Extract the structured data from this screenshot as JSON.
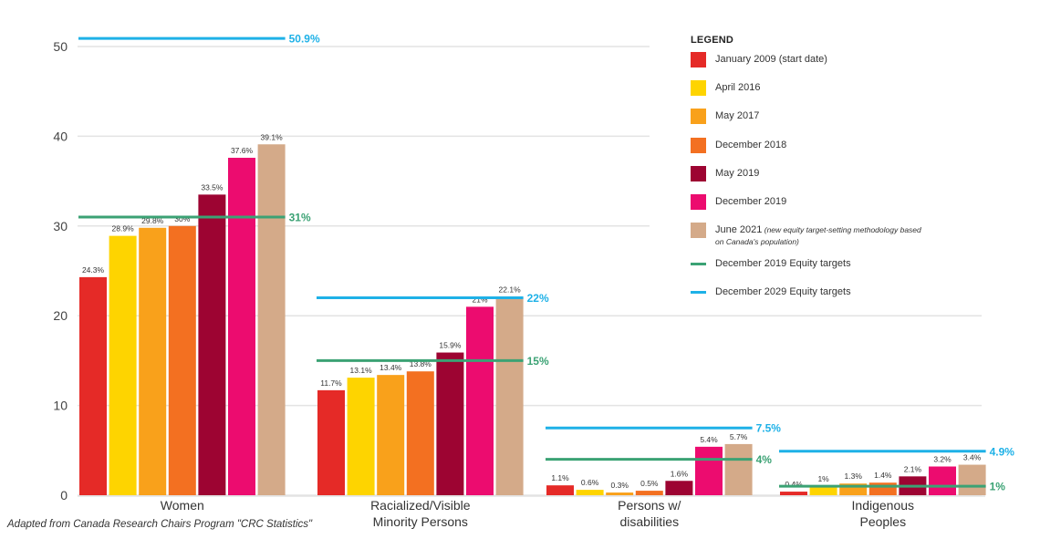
{
  "chart_data": {
    "type": "bar",
    "title": "",
    "xlabel": "",
    "ylabel": "",
    "ylim": [
      0,
      50
    ],
    "yticks": [
      0,
      10,
      20,
      30,
      40,
      50
    ],
    "grid": true,
    "legend_position": "top-right",
    "categories": [
      [
        "Women"
      ],
      [
        "Racialized/Visible",
        "Minority Persons"
      ],
      [
        "Persons w/",
        "disabilities"
      ],
      [
        "Indigenous",
        "Peoples"
      ]
    ],
    "series": [
      {
        "name": "January 2009 (start date)",
        "color": "#e52a27",
        "values": [
          24.3,
          11.7,
          1.1,
          0.4
        ],
        "labels": [
          "24.3%",
          "11.7%",
          "1.1%",
          "0.4%"
        ]
      },
      {
        "name": "April 2016",
        "color": "#fed400",
        "values": [
          28.9,
          13.1,
          0.6,
          1
        ],
        "labels": [
          "28.9%",
          "13.1%",
          "0.6%",
          "1%"
        ]
      },
      {
        "name": "May 2017",
        "color": "#f9a11b",
        "values": [
          29.8,
          13.4,
          0.3,
          1.3
        ],
        "labels": [
          "29.8%",
          "13.4%",
          "0.3%",
          "1.3%"
        ]
      },
      {
        "name": "December 2018",
        "color": "#f37021",
        "values": [
          30,
          13.8,
          0.5,
          1.4
        ],
        "labels": [
          "30%",
          "13.8%",
          "0.5%",
          "1.4%"
        ]
      },
      {
        "name": "May 2019",
        "color": "#9d0432",
        "values": [
          33.5,
          15.9,
          1.6,
          2.1
        ],
        "labels": [
          "33.5%",
          "15.9%",
          "1.6%",
          "2.1%"
        ]
      },
      {
        "name": "December 2019",
        "color": "#ec0c6f",
        "values": [
          37.6,
          21,
          5.4,
          3.2
        ],
        "labels": [
          "37.6%",
          "21%",
          "5.4%",
          "3.2%"
        ]
      },
      {
        "name": "June 2021",
        "note": "(new equity target-setting methodology based on Canada's population)",
        "color": "#d4aa89",
        "values": [
          39.1,
          22.1,
          5.7,
          3.4
        ],
        "labels": [
          "39.1%",
          "22.1%",
          "5.7%",
          "3.4%"
        ]
      }
    ],
    "target_lines": [
      {
        "name": "December 2019 Equity targets",
        "color": "#3ba274",
        "values": [
          31,
          15,
          4,
          1
        ],
        "labels": [
          "31%",
          "15%",
          "4%",
          "1%"
        ]
      },
      {
        "name": "December 2029 Equity targets",
        "color": "#1eb1e7",
        "values": [
          50.9,
          22,
          7.5,
          4.9
        ],
        "labels": [
          "50.9%",
          "22%",
          "7.5%",
          "4.9%"
        ]
      }
    ]
  },
  "legend": {
    "title": "LEGEND",
    "items": [
      {
        "label": "January 2009 (start date)",
        "note": "",
        "color": "#e52a27",
        "kind": "swatch"
      },
      {
        "label": "April 2016",
        "note": "",
        "color": "#fed400",
        "kind": "swatch"
      },
      {
        "label": "May 2017",
        "note": "",
        "color": "#f9a11b",
        "kind": "swatch"
      },
      {
        "label": "December 2018",
        "note": "",
        "color": "#f37021",
        "kind": "swatch"
      },
      {
        "label": "May 2019",
        "note": "",
        "color": "#9d0432",
        "kind": "swatch"
      },
      {
        "label": "December 2019",
        "note": "",
        "color": "#ec0c6f",
        "kind": "swatch"
      },
      {
        "label": "June 2021",
        "note": "(new equity target-setting methodology based on Canada's population)",
        "color": "#d4aa89",
        "kind": "swatch"
      },
      {
        "label": "December 2019 Equity targets",
        "note": "",
        "color": "#3ba274",
        "kind": "line"
      },
      {
        "label": "December 2029 Equity targets",
        "note": "",
        "color": "#1eb1e7",
        "kind": "line"
      }
    ]
  },
  "source": "Adapted from Canada Research Chairs Program \"CRC Statistics\""
}
